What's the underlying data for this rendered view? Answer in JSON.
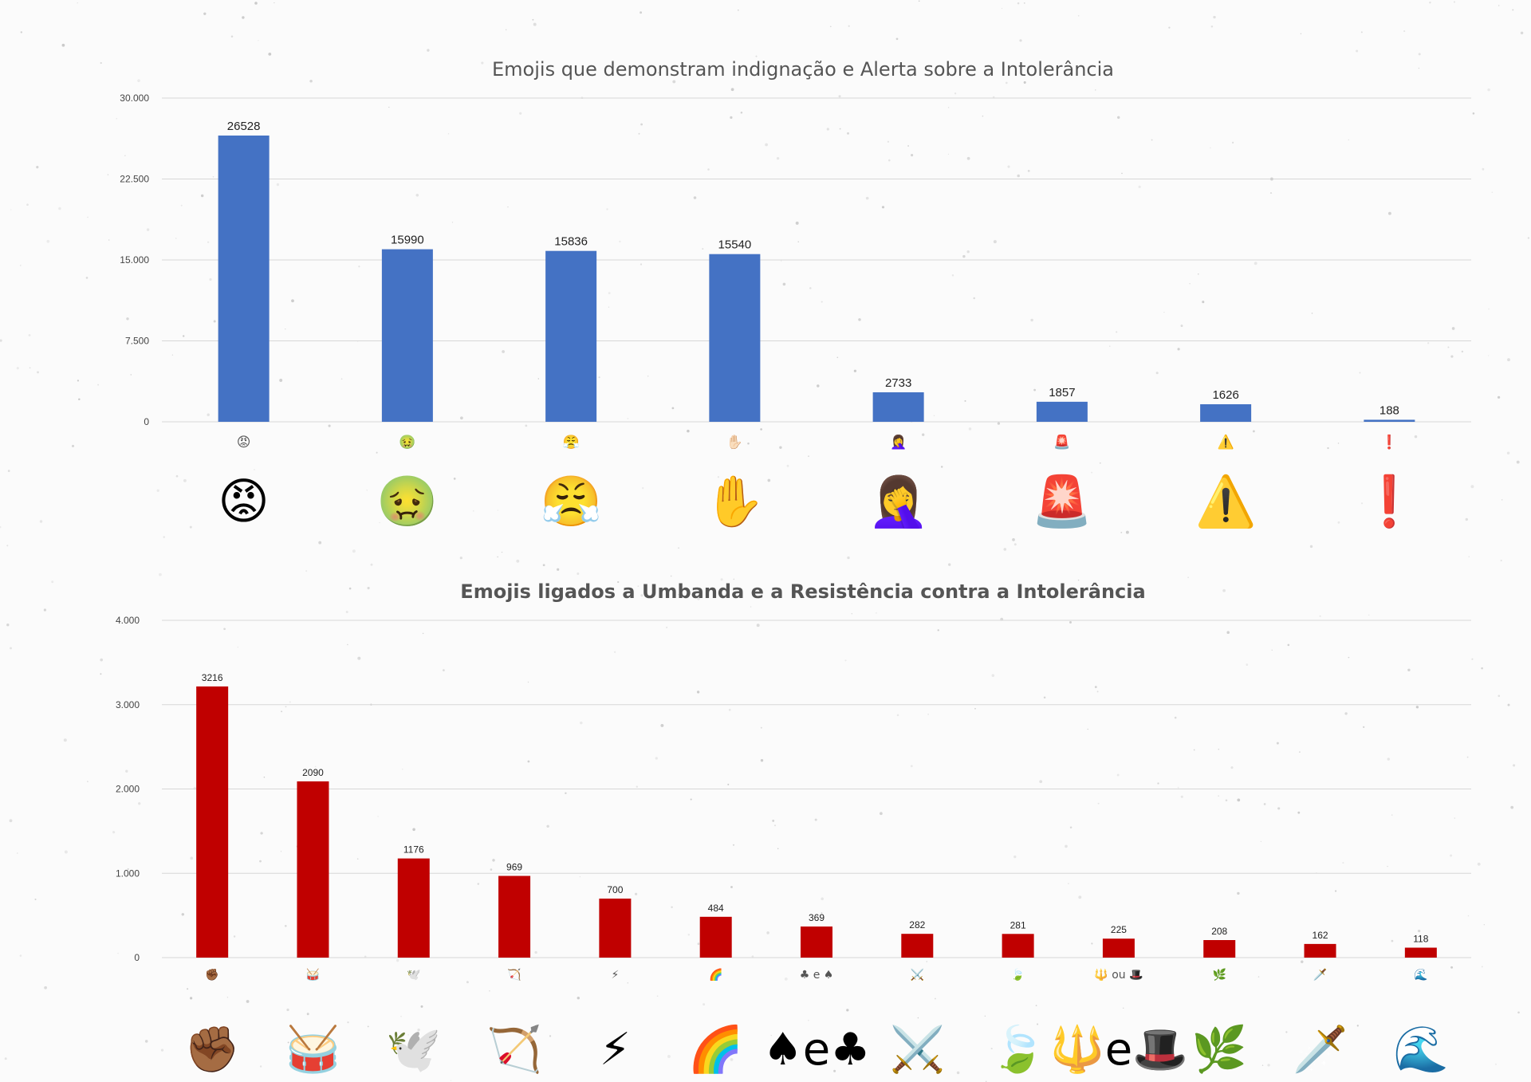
{
  "chart_data": [
    {
      "type": "bar",
      "title": "Emojis que demonstram indignação e Alerta sobre a Intolerância",
      "categories": [
        "😡",
        "🤢",
        "😤",
        "✋🏻",
        "🤦‍♀️",
        "🚨",
        "⚠️",
        "❗"
      ],
      "values": [
        26528,
        15990,
        15836,
        15540,
        2733,
        1857,
        1626,
        188
      ],
      "ylim": [
        0,
        30000
      ],
      "yticks": [
        "0",
        "7.500",
        "15.000",
        "22.500",
        "30.000"
      ],
      "ytick_values": [
        0,
        7500,
        15000,
        22500,
        30000
      ],
      "grid": true,
      "color": "#4472c4",
      "large_emojis": [
        "😡",
        "🤢",
        "😤",
        "✋",
        "🤦‍♀️",
        "🚨",
        "⚠️",
        "❗"
      ]
    },
    {
      "type": "bar",
      "title": "Emojis ligados a Umbanda e a Resistência contra a Intolerância",
      "categories": [
        "✊🏾",
        "🥁",
        "🕊️",
        "🏹",
        "⚡",
        "🌈",
        "♣ e ♠",
        "⚔️",
        "🍃",
        "🔱 ou 🎩",
        "🌿",
        "🗡️",
        "🌊"
      ],
      "values": [
        3216,
        2090,
        1176,
        969,
        700,
        484,
        369,
        282,
        281,
        225,
        208,
        162,
        118
      ],
      "ylim": [
        0,
        4000
      ],
      "yticks": [
        "0",
        "1.000",
        "2.000",
        "3.000",
        "4.000"
      ],
      "ytick_values": [
        0,
        1000,
        2000,
        3000,
        4000
      ],
      "grid": true,
      "color": "#c00000",
      "large_emojis": [
        "✊🏾",
        "🥁",
        "🕊️",
        "🏹",
        "⚡",
        "🌈",
        "♠e♣",
        "⚔️",
        "🍃",
        "🔱e🎩",
        "🌿",
        "🗡️",
        "🌊"
      ]
    }
  ]
}
